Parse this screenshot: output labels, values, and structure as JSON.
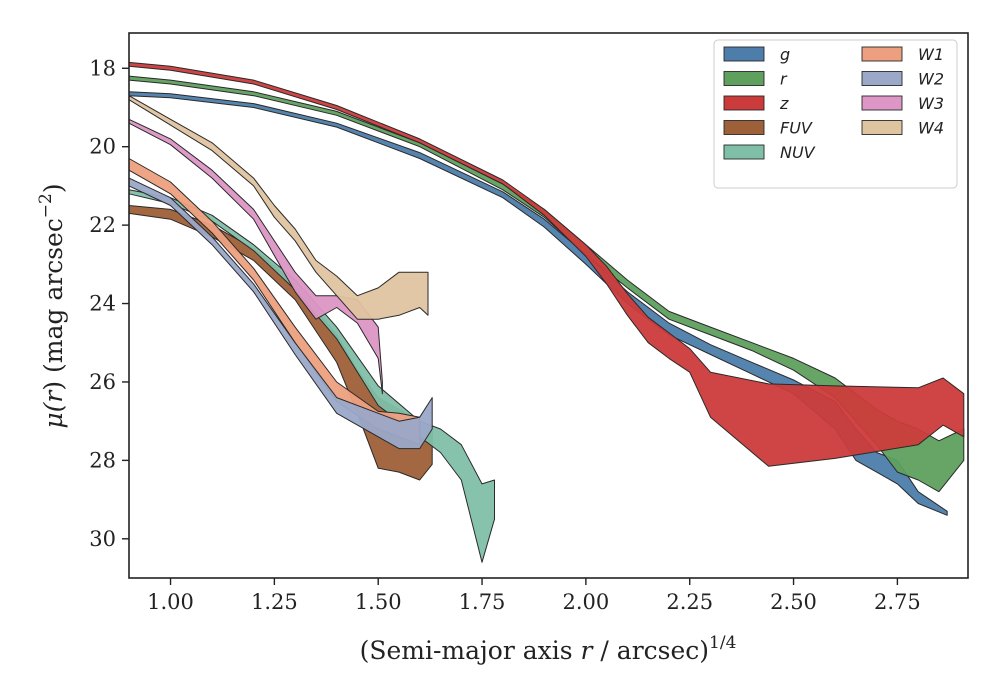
{
  "chart_data": {
    "type": "area",
    "title": "",
    "xlabel": "(Semi-major axis r / arcsec)^{1/4}",
    "xlabel_parts": {
      "before": "(Semi-major axis ",
      "var": "r",
      "after": " / arcsec)",
      "sup": "1/4"
    },
    "ylabel": "μ(r) (mag arcsec^-2)",
    "ylabel_parts": {
      "mu": "μ(",
      "var": "r",
      "after": ") (mag arcsec",
      "sup": "−2",
      "close": ")"
    },
    "xlim": [
      0.9,
      2.92
    ],
    "ylim": [
      31.0,
      17.1
    ],
    "y_inverted": true,
    "xticks": [
      1.0,
      1.25,
      1.5,
      1.75,
      2.0,
      2.25,
      2.5,
      2.75
    ],
    "xtick_labels": [
      "1.00",
      "1.25",
      "1.50",
      "1.75",
      "2.00",
      "2.25",
      "2.50",
      "2.75"
    ],
    "yticks": [
      18,
      20,
      22,
      24,
      26,
      28,
      30
    ],
    "ytick_labels": [
      "18",
      "20",
      "22",
      "24",
      "26",
      "28",
      "30"
    ],
    "grid": false,
    "legend_position": "top-right",
    "series": [
      {
        "name": "g",
        "color": "#4c7dab",
        "x": [
          0.9,
          1.0,
          1.2,
          1.4,
          1.6,
          1.8,
          1.9,
          2.0,
          2.1,
          2.2,
          2.3,
          2.4,
          2.5,
          2.6,
          2.65,
          2.7,
          2.75,
          2.8,
          2.87
        ],
        "lo": [
          18.6,
          18.65,
          18.9,
          19.4,
          20.15,
          21.15,
          21.85,
          22.75,
          23.7,
          24.5,
          25.05,
          25.5,
          25.95,
          26.5,
          27.2,
          27.8,
          28.0,
          28.8,
          29.3
        ],
        "hi": [
          18.7,
          18.75,
          19.0,
          19.5,
          20.3,
          21.3,
          22.05,
          23.0,
          24.0,
          24.8,
          25.3,
          25.8,
          26.3,
          27.2,
          28.0,
          28.3,
          28.6,
          29.1,
          29.4
        ]
      },
      {
        "name": "r",
        "color": "#5fa05f",
        "x": [
          0.9,
          1.0,
          1.2,
          1.4,
          1.6,
          1.8,
          1.9,
          2.0,
          2.1,
          2.2,
          2.3,
          2.4,
          2.5,
          2.6,
          2.7,
          2.75,
          2.8,
          2.85,
          2.91
        ],
        "lo": [
          18.2,
          18.3,
          18.6,
          19.1,
          19.9,
          20.95,
          21.6,
          22.5,
          23.4,
          24.2,
          24.6,
          25.0,
          25.4,
          25.9,
          26.7,
          27.0,
          27.2,
          27.5,
          27.2
        ],
        "hi": [
          18.3,
          18.4,
          18.7,
          19.2,
          20.0,
          21.1,
          21.8,
          22.75,
          23.6,
          24.4,
          24.8,
          25.2,
          25.7,
          26.4,
          27.6,
          28.3,
          28.5,
          28.8,
          28.0
        ]
      },
      {
        "name": "z",
        "color": "#cc3b3b",
        "x": [
          0.9,
          1.0,
          1.2,
          1.4,
          1.6,
          1.8,
          1.9,
          2.0,
          2.05,
          2.1,
          2.15,
          2.2,
          2.25,
          2.3,
          2.44,
          2.6,
          2.8,
          2.86,
          2.91
        ],
        "lo": [
          17.85,
          17.95,
          18.3,
          18.95,
          19.8,
          20.85,
          21.6,
          22.5,
          23.05,
          23.75,
          24.35,
          24.75,
          25.15,
          25.75,
          26.05,
          26.1,
          26.15,
          25.9,
          26.3
        ],
        "hi": [
          17.95,
          18.05,
          18.4,
          19.05,
          19.9,
          20.95,
          21.75,
          22.8,
          23.5,
          24.3,
          25.0,
          25.4,
          25.75,
          26.9,
          28.15,
          27.95,
          27.6,
          27.1,
          27.4
        ]
      },
      {
        "name": "FUV",
        "color": "#9e6038",
        "x": [
          0.9,
          1.0,
          1.1,
          1.2,
          1.3,
          1.4,
          1.45,
          1.5,
          1.55,
          1.6,
          1.63
        ],
        "lo": [
          21.5,
          21.6,
          22.0,
          22.6,
          23.5,
          24.8,
          25.7,
          26.4,
          26.7,
          27.0,
          27.2
        ],
        "hi": [
          21.7,
          21.85,
          22.3,
          22.9,
          23.9,
          25.5,
          26.8,
          28.2,
          28.3,
          28.5,
          28.1
        ]
      },
      {
        "name": "NUV",
        "color": "#7fbfa8",
        "x": [
          0.9,
          1.0,
          1.1,
          1.2,
          1.3,
          1.4,
          1.5,
          1.6,
          1.65,
          1.7,
          1.75,
          1.78
        ],
        "lo": [
          21.1,
          21.3,
          21.75,
          22.5,
          23.4,
          24.6,
          26.1,
          27.0,
          27.2,
          27.6,
          28.6,
          28.5
        ],
        "hi": [
          21.2,
          21.45,
          21.9,
          22.65,
          23.65,
          24.9,
          26.6,
          27.4,
          27.8,
          28.5,
          30.6,
          29.5
        ]
      },
      {
        "name": "W1",
        "color": "#eda07f",
        "x": [
          0.9,
          1.0,
          1.1,
          1.2,
          1.3,
          1.4,
          1.5,
          1.55,
          1.6
        ],
        "lo": [
          20.3,
          20.9,
          21.9,
          23.1,
          24.6,
          26.0,
          26.75,
          26.8,
          26.9
        ],
        "hi": [
          20.6,
          21.2,
          22.2,
          23.4,
          25.0,
          26.5,
          27.2,
          27.4,
          27.6
        ]
      },
      {
        "name": "W2",
        "color": "#9ba8c8",
        "x": [
          0.9,
          1.0,
          1.1,
          1.2,
          1.3,
          1.4,
          1.5,
          1.55,
          1.6,
          1.63
        ],
        "lo": [
          20.8,
          21.3,
          22.3,
          23.5,
          25.0,
          26.4,
          26.8,
          27.0,
          26.9,
          26.4
        ],
        "hi": [
          21.0,
          21.5,
          22.5,
          23.7,
          25.3,
          26.8,
          27.4,
          27.7,
          27.7,
          27.2
        ]
      },
      {
        "name": "W3",
        "color": "#dd96c5",
        "x": [
          0.9,
          1.0,
          1.1,
          1.2,
          1.3,
          1.35,
          1.4,
          1.45,
          1.5,
          1.51
        ],
        "lo": [
          19.3,
          19.8,
          20.6,
          21.6,
          23.2,
          23.8,
          23.8,
          23.9,
          24.6,
          26.0
        ],
        "hi": [
          19.4,
          19.95,
          20.8,
          21.85,
          23.7,
          24.4,
          24.1,
          24.5,
          25.4,
          26.3
        ]
      },
      {
        "name": "W4",
        "color": "#dfc4a0",
        "x": [
          0.9,
          1.0,
          1.1,
          1.2,
          1.25,
          1.3,
          1.35,
          1.4,
          1.45,
          1.5,
          1.55,
          1.6,
          1.62
        ],
        "lo": [
          18.7,
          19.3,
          19.9,
          20.8,
          21.5,
          22.1,
          22.9,
          23.3,
          23.8,
          23.6,
          23.2,
          23.2,
          23.2
        ],
        "hi": [
          18.8,
          19.45,
          20.1,
          21.0,
          21.8,
          22.4,
          23.2,
          23.8,
          24.4,
          24.4,
          24.3,
          24.1,
          24.3
        ]
      }
    ]
  }
}
